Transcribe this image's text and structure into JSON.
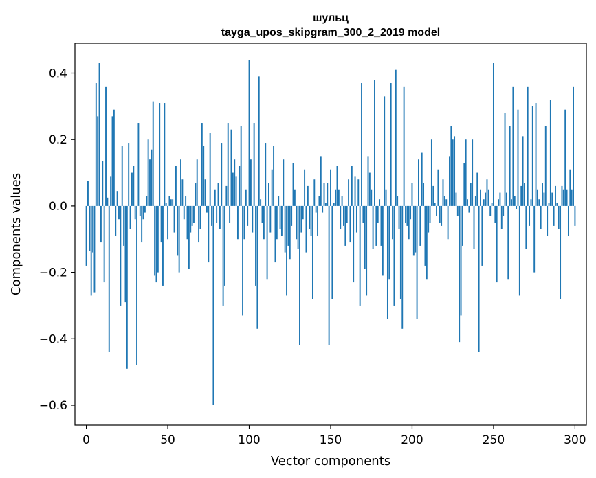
{
  "chart_data": {
    "type": "bar",
    "title": "шульц",
    "subtitle": "tayga_upos_skipgram_300_2_2019 model",
    "xlabel": "Vector components",
    "ylabel": "Components values",
    "xlim": [
      -7,
      307
    ],
    "ylim": [
      -0.66,
      0.49
    ],
    "xticks": [
      0,
      50,
      100,
      150,
      200,
      250,
      300
    ],
    "xtick_labels": [
      "0",
      "50",
      "100",
      "150",
      "200",
      "250",
      "300"
    ],
    "yticks": [
      -0.6,
      -0.4,
      -0.2,
      0.0,
      0.2,
      0.4
    ],
    "ytick_labels": [
      "−0.6",
      "−0.4",
      "−0.2",
      "0.0",
      "0.2",
      "0.4"
    ],
    "bar_color": "#1f77b4",
    "grid": false,
    "values": [
      -0.18,
      0.075,
      -0.135,
      -0.27,
      -0.14,
      -0.26,
      0.37,
      0.27,
      0.43,
      -0.11,
      0.135,
      -0.23,
      0.36,
      0.025,
      -0.44,
      0.09,
      0.27,
      0.29,
      -0.09,
      0.045,
      -0.04,
      -0.3,
      0.18,
      -0.12,
      -0.29,
      -0.49,
      0.19,
      -0.07,
      0.1,
      0.12,
      -0.04,
      -0.48,
      0.25,
      -0.03,
      -0.11,
      -0.04,
      -0.02,
      0.03,
      0.2,
      0.14,
      0.17,
      0.315,
      -0.21,
      -0.23,
      -0.2,
      0.31,
      -0.11,
      -0.24,
      0.31,
      0.01,
      -0.1,
      0.03,
      0.02,
      0.02,
      -0.08,
      0.12,
      -0.15,
      -0.2,
      0.14,
      0.08,
      -0.04,
      0.03,
      -0.1,
      -0.19,
      -0.08,
      -0.06,
      -0.05,
      0.07,
      0.14,
      -0.11,
      -0.07,
      0.25,
      0.18,
      0.08,
      -0.02,
      -0.17,
      0.22,
      -0.06,
      -0.6,
      0.05,
      -0.05,
      0.07,
      -0.07,
      0.19,
      -0.3,
      -0.24,
      0.06,
      0.25,
      -0.05,
      0.23,
      0.1,
      0.14,
      0.09,
      -0.1,
      0.12,
      0.24,
      -0.33,
      -0.1,
      0.05,
      -0.06,
      0.44,
      0.14,
      -0.08,
      0.25,
      -0.24,
      -0.37,
      0.39,
      0.02,
      -0.05,
      -0.1,
      0.19,
      -0.22,
      0.07,
      -0.08,
      0.11,
      0.18,
      -0.17,
      -0.1,
      0.03,
      -0.07,
      -0.09,
      0.14,
      -0.14,
      -0.27,
      -0.12,
      -0.16,
      -0.06,
      0.13,
      0.05,
      -0.1,
      -0.13,
      -0.42,
      -0.08,
      -0.04,
      0.11,
      -0.14,
      0.06,
      -0.07,
      -0.09,
      -0.28,
      0.08,
      -0.02,
      -0.09,
      0.03,
      0.15,
      -0.02,
      0.07,
      0.01,
      0.07,
      -0.42,
      0.11,
      -0.28,
      0.01,
      0.05,
      0.12,
      0.05,
      -0.07,
      0.03,
      -0.06,
      -0.12,
      -0.05,
      0.08,
      -0.11,
      0.12,
      -0.23,
      0.09,
      -0.08,
      0.08,
      -0.3,
      0.37,
      -0.05,
      -0.19,
      -0.27,
      0.15,
      0.1,
      0.05,
      -0.13,
      0.38,
      -0.12,
      -0.05,
      0.02,
      -0.12,
      -0.21,
      0.33,
      0.05,
      -0.34,
      -0.22,
      0.37,
      -0.1,
      -0.3,
      0.41,
      0.03,
      -0.07,
      -0.28,
      -0.37,
      0.36,
      -0.05,
      -0.06,
      -0.1,
      -0.04,
      0.07,
      -0.15,
      -0.14,
      -0.34,
      0.14,
      -0.12,
      0.16,
      0.07,
      -0.18,
      -0.22,
      -0.08,
      -0.05,
      0.2,
      0.06,
      0.01,
      -0.03,
      0.11,
      -0.05,
      -0.06,
      0.08,
      0.03,
      0.02,
      -0.1,
      0.15,
      0.24,
      0.2,
      0.21,
      0.04,
      -0.03,
      -0.41,
      -0.33,
      -0.12,
      0.13,
      0.2,
      0.02,
      -0.02,
      0.07,
      0.2,
      -0.13,
      0.03,
      0.1,
      -0.44,
      0.05,
      -0.18,
      0.02,
      0.04,
      0.08,
      0.05,
      -0.03,
      0.01,
      0.43,
      -0.05,
      -0.23,
      0.02,
      0.04,
      -0.07,
      -0.03,
      0.28,
      0.04,
      -0.22,
      0.24,
      0.02,
      0.36,
      0.03,
      -0.01,
      0.29,
      -0.27,
      0.06,
      0.21,
      0.07,
      -0.13,
      0.36,
      -0.06,
      0.02,
      0.3,
      -0.2,
      0.31,
      0.05,
      0.02,
      -0.07,
      0.07,
      0.04,
      0.24,
      -0.09,
      0.01,
      0.32,
      0.04,
      -0.06,
      0.06,
      0.01,
      -0.07,
      -0.28,
      0.06,
      0.05,
      0.29,
      0.05,
      -0.09,
      0.11,
      0.05,
      0.36,
      -0.06
    ]
  }
}
